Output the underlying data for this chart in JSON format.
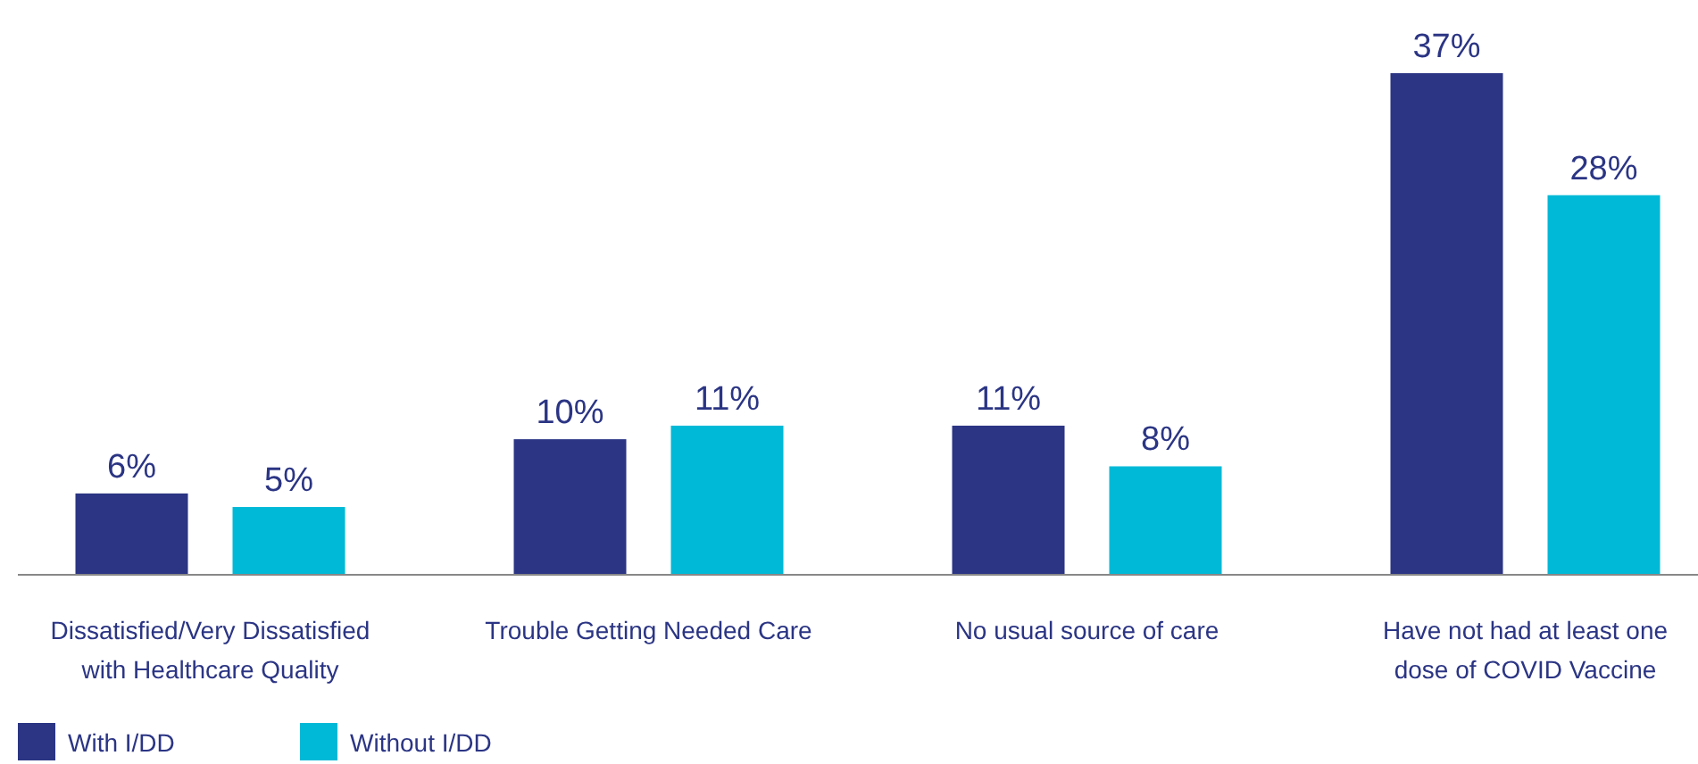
{
  "chart_data": {
    "type": "bar",
    "categories": [
      "Dissatisfied/Very Dissatisfied with Healthcare Quality",
      "Trouble Getting Needed Care",
      "No usual source of care",
      "Have not had at least one dose of COVID Vaccine"
    ],
    "series": [
      {
        "name": "With I/DD",
        "color": "#2b3584",
        "values": [
          6,
          10,
          11,
          37
        ],
        "value_labels": [
          "6%",
          "10%",
          "11%",
          "37%"
        ]
      },
      {
        "name": "Without I/DD",
        "color": "#00b9d6",
        "values": [
          5,
          11,
          8,
          28
        ],
        "value_labels": [
          "5%",
          "11%",
          "8%",
          "28%"
        ]
      }
    ],
    "legend": "bottom left",
    "grid": false
  }
}
